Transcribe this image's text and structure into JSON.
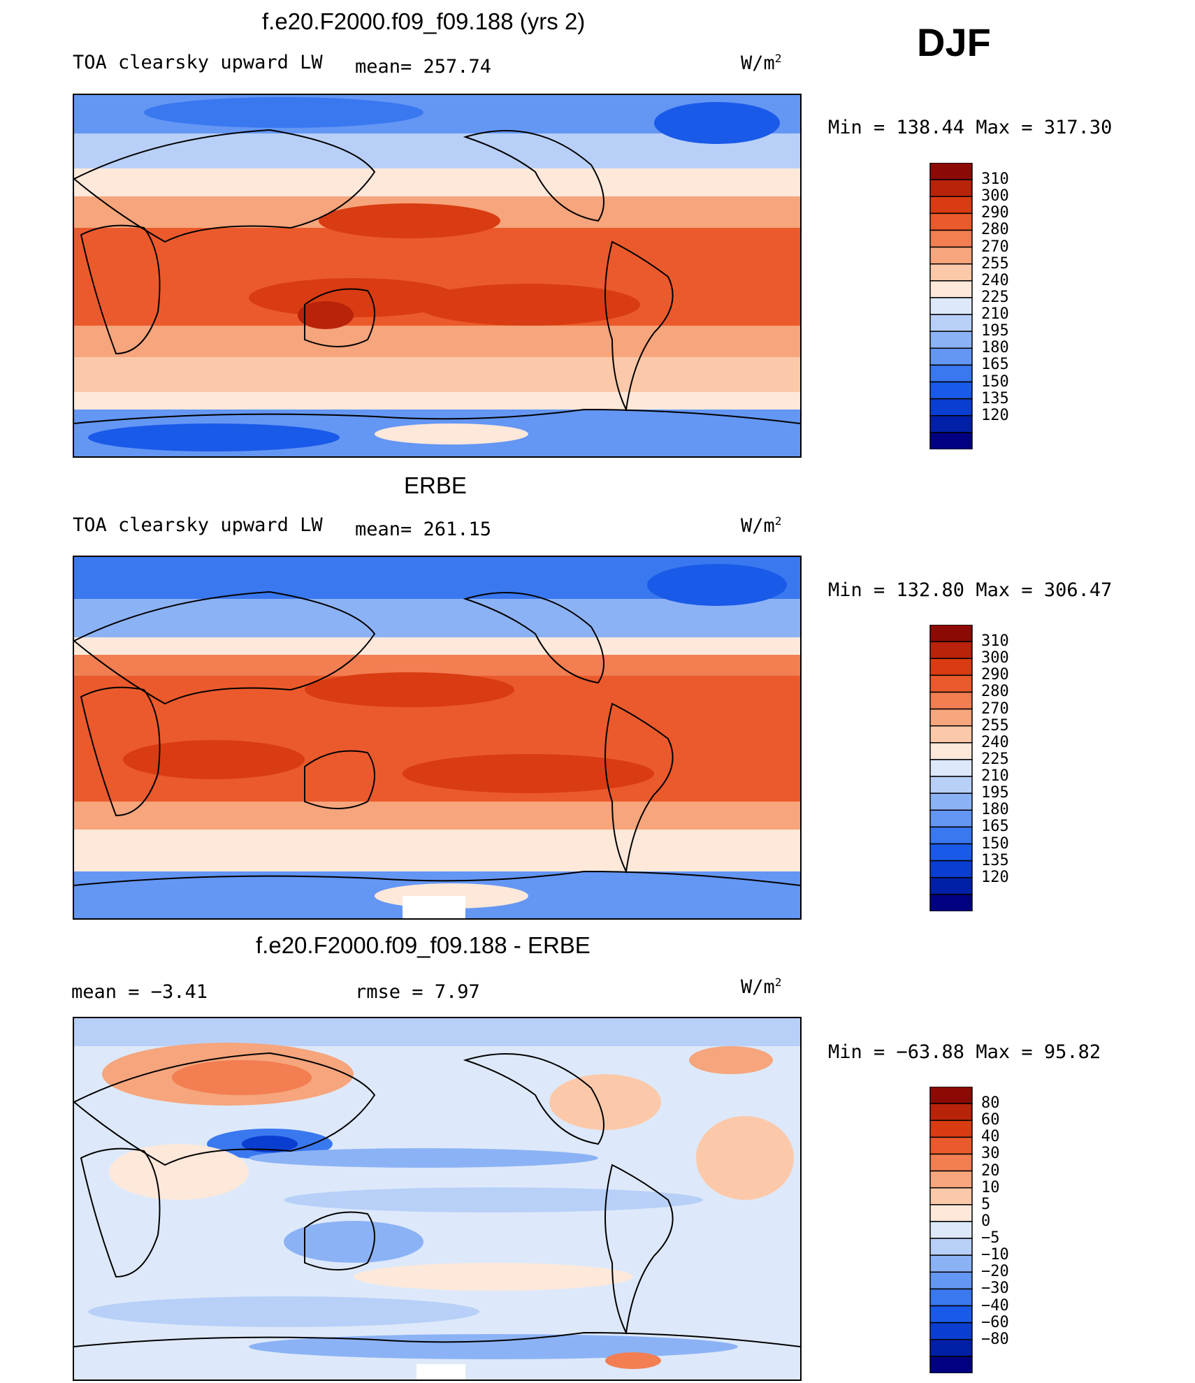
{
  "season": "DJF",
  "units_prefix": "W/m",
  "units_exponent": "2",
  "panels": [
    {
      "id": "model",
      "title": "f.e20.F2000.f09_f09.188 (yrs 2)",
      "left_text": "TOA clearsky upward LW",
      "stat1": "mean= 257.74",
      "stat2": "",
      "minmax": "Min = 138.44 Max = 317.30",
      "colorbar_labels": [
        "310",
        "300",
        "290",
        "280",
        "270",
        "255",
        "240",
        "225",
        "210",
        "195",
        "180",
        "165",
        "150",
        "135",
        "120"
      ]
    },
    {
      "id": "obs",
      "title": "ERBE",
      "left_text": "TOA clearsky upward LW",
      "stat1": "mean= 261.15",
      "stat2": "",
      "minmax": "Min = 132.80 Max = 306.47",
      "colorbar_labels": [
        "310",
        "300",
        "290",
        "280",
        "270",
        "255",
        "240",
        "225",
        "210",
        "195",
        "180",
        "165",
        "150",
        "135",
        "120"
      ]
    },
    {
      "id": "diff",
      "title": "f.e20.F2000.f09_f09.188 - ERBE",
      "left_text": "mean =  −3.41",
      "stat1": "rmse =   7.97",
      "stat2": "",
      "minmax": "Min = −63.88 Max =  95.82",
      "colorbar_labels": [
        "80",
        "60",
        "40",
        "30",
        "20",
        "10",
        "5",
        "0",
        "−5",
        "−10",
        "−20",
        "−30",
        "−40",
        "−60",
        "−80"
      ]
    }
  ],
  "colors": {
    "full_scale": [
      "#000080",
      "#0020a8",
      "#0a3ed1",
      "#1a5ae8",
      "#3a78f0",
      "#6496f4",
      "#8cb2f6",
      "#b8d0f8",
      "#dde9fa",
      "#fde8da",
      "#fbc9a9",
      "#f6a57c",
      "#f27e52",
      "#eb5a2c",
      "#d93c12",
      "#b8230a",
      "#8c0a05"
    ],
    "diff_scale": [
      "#000080",
      "#0020a8",
      "#0a3ed1",
      "#1a5ae8",
      "#3a78f0",
      "#6496f4",
      "#8cb2f6",
      "#b8d0f8",
      "#dde9fa",
      "#fde8da",
      "#fbc9a9",
      "#f6a57c",
      "#f27e52",
      "#eb5a2c",
      "#d93c12",
      "#b8230a",
      "#8c0a05"
    ]
  }
}
